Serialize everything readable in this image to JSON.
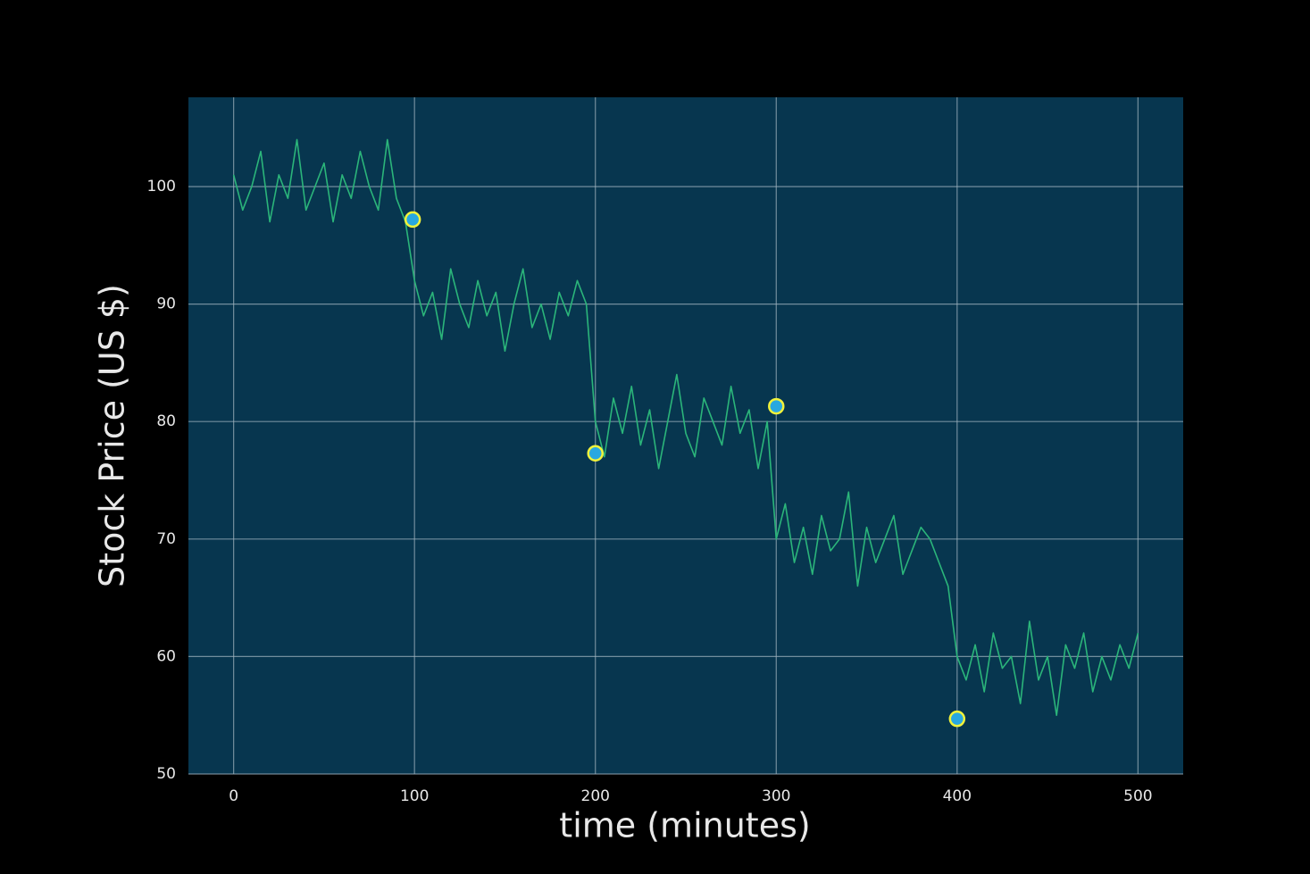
{
  "chart_data": {
    "type": "line",
    "xlabel": "time (minutes)",
    "ylabel": "Stock Price (US $)",
    "x": [
      0,
      5,
      10,
      15,
      20,
      25,
      30,
      35,
      40,
      45,
      50,
      55,
      60,
      65,
      70,
      75,
      80,
      85,
      90,
      95,
      100,
      105,
      110,
      115,
      120,
      125,
      130,
      135,
      140,
      145,
      150,
      155,
      160,
      165,
      170,
      175,
      180,
      185,
      190,
      195,
      200,
      205,
      210,
      215,
      220,
      225,
      230,
      235,
      240,
      245,
      250,
      255,
      260,
      265,
      270,
      275,
      280,
      285,
      290,
      295,
      300,
      305,
      310,
      315,
      320,
      325,
      330,
      335,
      340,
      345,
      350,
      355,
      360,
      365,
      370,
      375,
      380,
      385,
      390,
      395,
      400,
      405,
      410,
      415,
      420,
      425,
      430,
      435,
      440,
      445,
      450,
      455,
      460,
      465,
      470,
      475,
      480,
      485,
      490,
      495,
      500
    ],
    "series": [
      {
        "color": "#2bb57a",
        "values": [
          101,
          98,
          100,
          103,
          97,
          101,
          99,
          104,
          98,
          100,
          102,
          97,
          101,
          99,
          103,
          100,
          98,
          104,
          99,
          97,
          92,
          89,
          91,
          87,
          93,
          90,
          88,
          92,
          89,
          91,
          86,
          90,
          93,
          88,
          90,
          87,
          91,
          89,
          92,
          90,
          80,
          77,
          82,
          79,
          83,
          78,
          81,
          76,
          80,
          84,
          79,
          77,
          82,
          80,
          78,
          83,
          79,
          81,
          76,
          80,
          70,
          73,
          68,
          71,
          67,
          72,
          69,
          70,
          74,
          66,
          71,
          68,
          70,
          72,
          67,
          69,
          71,
          70,
          68,
          66,
          60,
          58,
          61,
          57,
          62,
          59,
          60,
          56,
          63,
          58,
          60,
          55,
          61,
          59,
          62,
          57,
          60,
          58,
          61,
          59,
          62
        ]
      }
    ],
    "markers": {
      "x": [
        99,
        200,
        300,
        400
      ],
      "values": [
        97.2,
        77.3,
        81.3,
        54.7
      ],
      "color": "#29a8e0",
      "edge_color": "#f2f23a"
    },
    "xlim": [
      -25,
      525
    ],
    "ylim": [
      50,
      107.6
    ],
    "xticks": [
      0,
      100,
      200,
      300,
      400,
      500
    ],
    "yticks": [
      50,
      60,
      70,
      80,
      90,
      100
    ],
    "grid": true
  }
}
